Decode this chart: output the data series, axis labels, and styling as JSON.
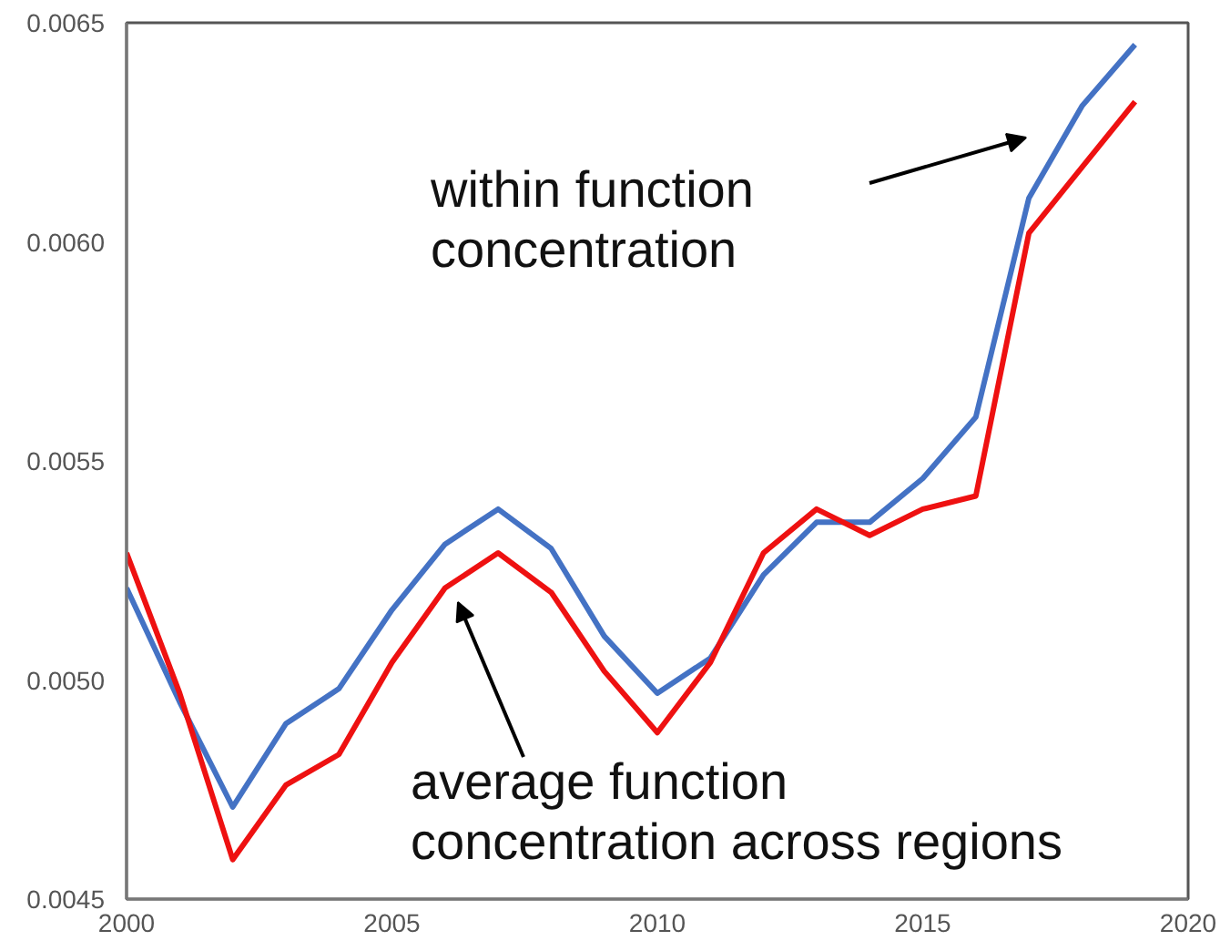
{
  "chart_data": {
    "type": "line",
    "x": [
      2000,
      2001,
      2002,
      2003,
      2004,
      2005,
      2006,
      2007,
      2008,
      2009,
      2010,
      2011,
      2012,
      2013,
      2014,
      2015,
      2016,
      2017,
      2018,
      2019
    ],
    "series": [
      {
        "color": "#4472c4",
        "values": [
          0.00521,
          0.00495,
          0.00471,
          0.0049,
          0.00498,
          0.00516,
          0.00531,
          0.00539,
          0.0053,
          0.0051,
          0.00497,
          0.00505,
          0.00524,
          0.00536,
          0.00536,
          0.00546,
          0.0056,
          0.0061,
          0.00631,
          0.00645
        ]
      },
      {
        "color": "#ee1111",
        "values": [
          0.00529,
          0.00497,
          0.00459,
          0.00476,
          0.00483,
          0.00504,
          0.00521,
          0.00529,
          0.0052,
          0.00502,
          0.00488,
          0.00504,
          0.00529,
          0.00539,
          0.00533,
          0.00539,
          0.00542,
          0.00602,
          0.00617,
          0.00632
        ]
      }
    ],
    "xlim": [
      2000,
      2020
    ],
    "xticks": [
      2000,
      2005,
      2010,
      2015,
      2020
    ],
    "ylim": [
      0.0045,
      0.0065
    ],
    "yticks": [
      {
        "value": 0.0045,
        "label": "0.0045"
      },
      {
        "value": 0.005,
        "label": "0.0050"
      },
      {
        "value": 0.0055,
        "label": "0.0055"
      },
      {
        "value": 0.006,
        "label": "0.0060"
      },
      {
        "value": 0.0065,
        "label": "0.0065"
      }
    ],
    "annotations": [
      "within function concentration",
      "average function concentration across regions"
    ],
    "grid": false,
    "line_style": "solid"
  }
}
